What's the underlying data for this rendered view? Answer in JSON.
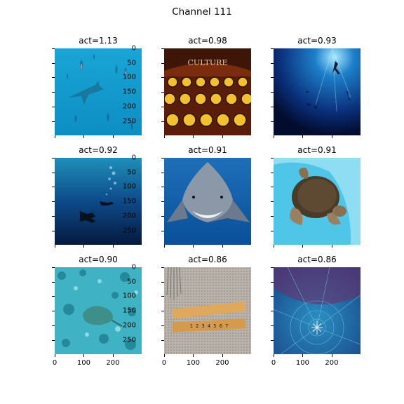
{
  "figure": {
    "title": "Channel 111"
  },
  "chart_data": {
    "type": "image-grid",
    "title": "Channel 111",
    "xticks": [
      "0",
      "100",
      "200"
    ],
    "yticks": [
      "0",
      "50",
      "100",
      "150",
      "200",
      "250"
    ],
    "panels": [
      {
        "label": "act=1.13",
        "act": 1.13,
        "scene": "hammerhead sharks in blue water"
      },
      {
        "label": "act=0.98",
        "act": 0.98,
        "scene": "typewriter keys"
      },
      {
        "label": "act=0.93",
        "act": 0.93,
        "scene": "divers in deep blue water"
      },
      {
        "label": "act=0.92",
        "act": 0.92,
        "scene": "scuba divers underwater"
      },
      {
        "label": "act=0.91",
        "act": 0.91,
        "scene": "great white shark"
      },
      {
        "label": "act=0.91",
        "act": 0.91,
        "scene": "sea turtle in pool"
      },
      {
        "label": "act=0.90",
        "act": 0.9,
        "scene": "stingray on coral sea floor"
      },
      {
        "label": "act=0.86",
        "act": 0.86,
        "scene": "folding wooden ruler"
      },
      {
        "label": "act=0.86",
        "act": 0.86,
        "scene": "spider on web over water"
      }
    ]
  },
  "typewriter": {
    "brand": "CULTURE"
  },
  "ruler": {
    "markings": "1 2 3 4 5 6 7"
  }
}
